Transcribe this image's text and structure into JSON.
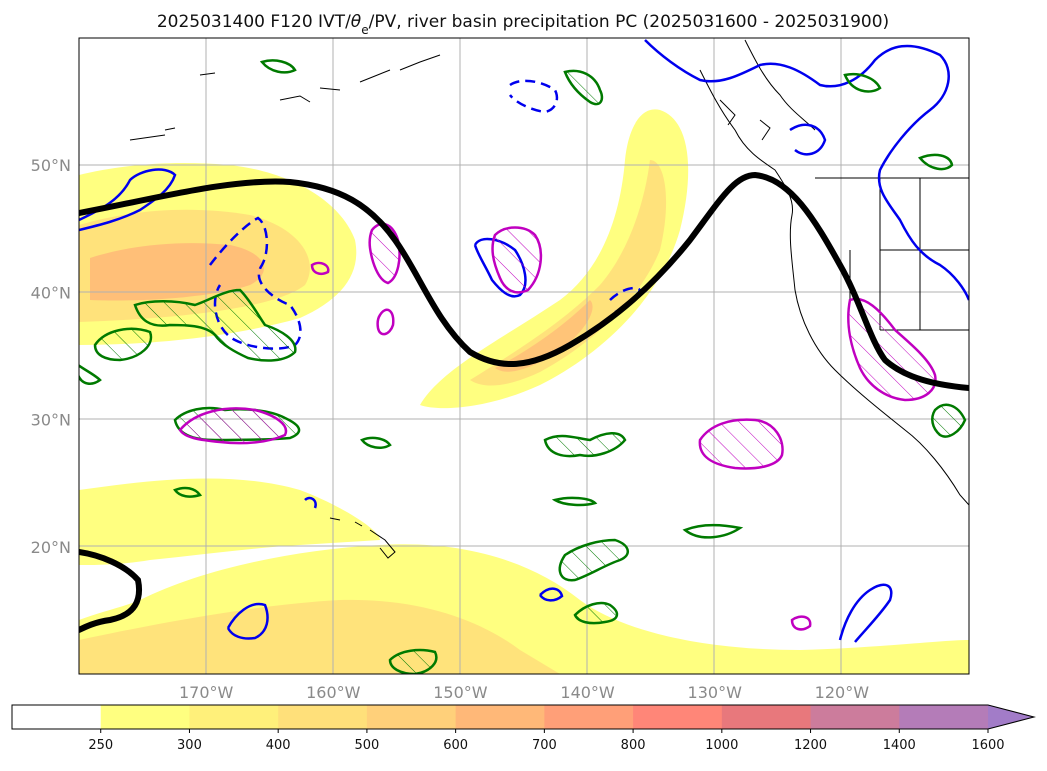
{
  "title": {
    "main": "2025031400 F120 IVT/",
    "theta": "θ",
    "sub": "e",
    "rest": "/PV, river basin precipitation PC (2025031600 - 2025031900)"
  },
  "map": {
    "lon_range": [
      -180,
      -110
    ],
    "lat_range": [
      10,
      60
    ],
    "lat_labels": [
      {
        "lat": 50,
        "text": "50°N"
      },
      {
        "lat": 40,
        "text": "40°N"
      },
      {
        "lat": 30,
        "text": "30°N"
      },
      {
        "lat": 20,
        "text": "20°N"
      }
    ],
    "lon_labels": [
      {
        "lon": -170,
        "text": "170°W"
      },
      {
        "lon": -160,
        "text": "160°W"
      },
      {
        "lon": -150,
        "text": "150°W"
      },
      {
        "lon": -140,
        "text": "140°W"
      },
      {
        "lon": -130,
        "text": "130°W"
      },
      {
        "lon": -120,
        "text": "120°W"
      }
    ],
    "contour_colors": {
      "pv_line": "#000000",
      "blue": "#0000ee",
      "green": "#007a00",
      "magenta": "#c000c0",
      "coast": "#000000"
    }
  },
  "colorbar": {
    "ticks": [
      "250",
      "300",
      "400",
      "500",
      "600",
      "700",
      "800",
      "1000",
      "1200",
      "1400",
      "1600"
    ],
    "colors": [
      "#ffffff",
      "#ffff80",
      "#fff07a",
      "#ffe07a",
      "#ffd07a",
      "#ffb878",
      "#ff9f78",
      "#ff8678",
      "#e8787c",
      "#cc7c9c",
      "#b47cb8",
      "#a27cc8"
    ]
  }
}
